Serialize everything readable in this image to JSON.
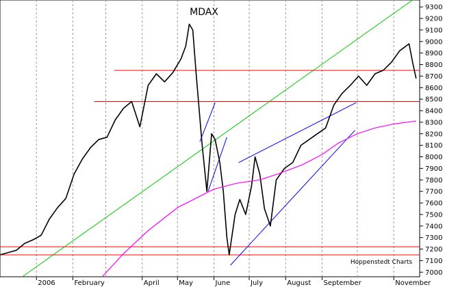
{
  "chart_data": {
    "type": "line",
    "title": "MDAX",
    "credit": "Hoppenstedt Charts",
    "xlabel": "",
    "ylabel": "",
    "ylim": [
      6960,
      9360
    ],
    "y_ticks": [
      7000,
      7100,
      7200,
      7300,
      7400,
      7500,
      7600,
      7700,
      7800,
      7900,
      8000,
      8100,
      8200,
      8300,
      8400,
      8500,
      8600,
      8700,
      8800,
      8900,
      9000,
      9100,
      9200,
      9300
    ],
    "x_range": [
      "2005-12-01",
      "2006-11-23"
    ],
    "x_tick_labels": [
      {
        "label": "2006",
        "date": "2006-01-01"
      },
      {
        "label": "February",
        "date": "2006-02-01"
      },
      {
        "label": "April",
        "date": "2006-04-01"
      },
      {
        "label": "May",
        "date": "2006-05-01"
      },
      {
        "label": "June",
        "date": "2006-06-01"
      },
      {
        "label": "July",
        "date": "2006-07-01"
      },
      {
        "label": "August",
        "date": "2006-08-01"
      },
      {
        "label": "September",
        "date": "2006-09-01"
      },
      {
        "label": "November",
        "date": "2006-11-01"
      }
    ],
    "grid_dates": [
      "2006-01-01",
      "2006-02-01",
      "2006-03-01",
      "2006-04-01",
      "2006-05-01",
      "2006-06-01",
      "2006-07-01",
      "2006-08-01",
      "2006-09-01",
      "2006-10-01",
      "2006-11-01"
    ],
    "grid": "vertical-dashed",
    "series": [
      {
        "color": "#000000",
        "points": [
          [
            "2005-12-01",
            7150
          ],
          [
            "2005-12-08",
            7170
          ],
          [
            "2005-12-15",
            7190
          ],
          [
            "2005-12-22",
            7250
          ],
          [
            "2005-12-29",
            7280
          ],
          [
            "2006-01-05",
            7320
          ],
          [
            "2006-01-12",
            7460
          ],
          [
            "2006-01-19",
            7560
          ],
          [
            "2006-01-26",
            7640
          ],
          [
            "2006-02-02",
            7850
          ],
          [
            "2006-02-09",
            7980
          ],
          [
            "2006-02-16",
            8080
          ],
          [
            "2006-02-23",
            8150
          ],
          [
            "2006-03-02",
            8170
          ],
          [
            "2006-03-09",
            8320
          ],
          [
            "2006-03-16",
            8420
          ],
          [
            "2006-03-23",
            8480
          ],
          [
            "2006-03-30",
            8260
          ],
          [
            "2006-04-06",
            8620
          ],
          [
            "2006-04-13",
            8720
          ],
          [
            "2006-04-20",
            8650
          ],
          [
            "2006-04-27",
            8730
          ],
          [
            "2006-05-04",
            8850
          ],
          [
            "2006-05-08",
            8960
          ],
          [
            "2006-05-11",
            9150
          ],
          [
            "2006-05-14",
            9100
          ],
          [
            "2006-05-17",
            8700
          ],
          [
            "2006-05-22",
            8100
          ],
          [
            "2006-05-26",
            7700
          ],
          [
            "2006-05-30",
            8200
          ],
          [
            "2006-06-02",
            8150
          ],
          [
            "2006-06-06",
            7950
          ],
          [
            "2006-06-09",
            7700
          ],
          [
            "2006-06-12",
            7300
          ],
          [
            "2006-06-14",
            7150
          ],
          [
            "2006-06-19",
            7500
          ],
          [
            "2006-06-23",
            7630
          ],
          [
            "2006-06-28",
            7500
          ],
          [
            "2006-07-03",
            7750
          ],
          [
            "2006-07-06",
            8000
          ],
          [
            "2006-07-10",
            7850
          ],
          [
            "2006-07-14",
            7550
          ],
          [
            "2006-07-19",
            7400
          ],
          [
            "2006-07-24",
            7800
          ],
          [
            "2006-07-31",
            7900
          ],
          [
            "2006-08-07",
            7950
          ],
          [
            "2006-08-14",
            8100
          ],
          [
            "2006-08-21",
            8150
          ],
          [
            "2006-08-28",
            8200
          ],
          [
            "2006-09-04",
            8250
          ],
          [
            "2006-09-11",
            8450
          ],
          [
            "2006-09-18",
            8550
          ],
          [
            "2006-09-25",
            8620
          ],
          [
            "2006-10-02",
            8700
          ],
          [
            "2006-10-09",
            8620
          ],
          [
            "2006-10-16",
            8720
          ],
          [
            "2006-10-23",
            8750
          ],
          [
            "2006-10-30",
            8820
          ],
          [
            "2006-11-06",
            8920
          ],
          [
            "2006-11-10",
            8950
          ],
          [
            "2006-11-14",
            8980
          ],
          [
            "2006-11-17",
            8820
          ],
          [
            "2006-11-20",
            8680
          ]
        ]
      },
      {
        "color": "#ff00ff",
        "points": [
          [
            "2006-02-26",
            6960
          ],
          [
            "2006-03-16",
            7160
          ],
          [
            "2006-04-06",
            7360
          ],
          [
            "2006-05-01",
            7560
          ],
          [
            "2006-06-01",
            7720
          ],
          [
            "2006-06-20",
            7770
          ],
          [
            "2006-07-10",
            7800
          ],
          [
            "2006-07-25",
            7850
          ],
          [
            "2006-08-15",
            7930
          ],
          [
            "2006-09-01",
            8020
          ],
          [
            "2006-09-15",
            8120
          ],
          [
            "2006-10-01",
            8200
          ],
          [
            "2006-10-16",
            8250
          ],
          [
            "2006-11-01",
            8285
          ],
          [
            "2006-11-20",
            8310
          ]
        ]
      }
    ],
    "lines": [
      {
        "color": "#00cc00",
        "from": [
          "2005-12-20",
          6960
        ],
        "to": [
          "2006-11-17",
          9360
        ]
      },
      {
        "color": "#ff0000",
        "from": [
          "2006-03-08",
          8750
        ],
        "to": [
          "2006-11-23",
          8750
        ]
      },
      {
        "color": "#ff0000",
        "from": [
          "2006-02-19",
          8480
        ],
        "to": [
          "2006-11-23",
          8480
        ]
      },
      {
        "color": "#ff0000",
        "from": [
          "2005-12-01",
          7220
        ],
        "to": [
          "2006-11-23",
          7220
        ]
      },
      {
        "color": "#ff0000",
        "from": [
          "2005-12-01",
          7150
        ],
        "to": [
          "2006-11-23",
          7150
        ]
      },
      {
        "color": "#0000ff",
        "from": [
          "2006-05-20",
          8130
        ],
        "to": [
          "2006-06-02",
          8470
        ]
      },
      {
        "color": "#0000ff",
        "from": [
          "2006-05-27",
          7700
        ],
        "to": [
          "2006-06-12",
          8170
        ]
      },
      {
        "color": "#0000ff",
        "from": [
          "2006-06-22",
          7950
        ],
        "to": [
          "2006-09-30",
          8470
        ]
      },
      {
        "color": "#0000ff",
        "from": [
          "2006-06-15",
          7060
        ],
        "to": [
          "2006-09-29",
          8230
        ]
      }
    ]
  }
}
